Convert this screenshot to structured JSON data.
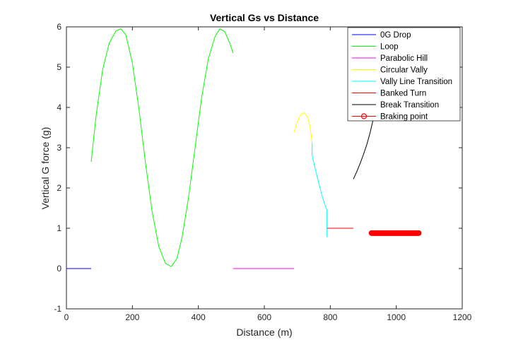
{
  "chart_data": {
    "type": "line",
    "title": "Vertical Gs vs Distance",
    "xlabel": "Distance (m)",
    "ylabel": "Vertical G force (g)",
    "xlim": [
      0,
      1200
    ],
    "ylim": [
      -1,
      6
    ],
    "xticks": [
      "0",
      "200",
      "400",
      "600",
      "800",
      "1000",
      "1200"
    ],
    "yticks": [
      "-1",
      "0",
      "1",
      "2",
      "3",
      "4",
      "5",
      "6"
    ],
    "grid": false,
    "legend_position": "top-right",
    "series": [
      {
        "name": "0G Drop",
        "color": "#0000ff",
        "x": [
          0,
          75
        ],
        "y": [
          0,
          0
        ]
      },
      {
        "name": "Loop",
        "color": "#00ff00",
        "x": [
          75,
          90,
          110,
          130,
          150,
          165,
          180,
          200,
          220,
          240,
          260,
          280,
          300,
          318,
          335,
          350,
          370,
          390,
          410,
          430,
          450,
          465,
          480,
          495,
          505
        ],
        "y": [
          2.65,
          3.8,
          4.95,
          5.6,
          5.9,
          5.95,
          5.8,
          5.1,
          3.95,
          2.6,
          1.4,
          0.55,
          0.13,
          0.05,
          0.25,
          0.75,
          1.75,
          3.0,
          4.25,
          5.2,
          5.75,
          5.95,
          5.88,
          5.6,
          5.35
        ]
      },
      {
        "name": "Parabolic Hill",
        "color": "#ff00ff",
        "x": [
          505,
          690
        ],
        "y": [
          0,
          0
        ]
      },
      {
        "name": "Circular Vally",
        "color": "#ffff00",
        "x": [
          690,
          700,
          710,
          720,
          730,
          738,
          745
        ],
        "y": [
          3.38,
          3.65,
          3.82,
          3.87,
          3.78,
          3.55,
          3.12
        ]
      },
      {
        "name": "Vally Line Transition",
        "color": "#00ffff",
        "x": [
          745,
          745,
          755,
          765,
          775,
          785,
          790,
          790
        ],
        "y": [
          3.12,
          2.8,
          2.45,
          2.12,
          1.8,
          1.55,
          1.45,
          0.78
        ]
      },
      {
        "name": "Banked Turn",
        "color": "#ff0000",
        "x": [
          790,
          870
        ],
        "y": [
          1.0,
          1.0
        ]
      },
      {
        "name": "Break Transition",
        "color": "#000000",
        "x": [
          870,
          880,
          890,
          900,
          910,
          920,
          930
        ],
        "y": [
          2.22,
          2.4,
          2.6,
          2.82,
          3.06,
          3.35,
          3.7
        ]
      },
      {
        "name": "Braking point",
        "color": "#ff0000",
        "marker": "circle",
        "x_start": 925,
        "x_end": 1068,
        "y_value": 0.88
      }
    ]
  }
}
